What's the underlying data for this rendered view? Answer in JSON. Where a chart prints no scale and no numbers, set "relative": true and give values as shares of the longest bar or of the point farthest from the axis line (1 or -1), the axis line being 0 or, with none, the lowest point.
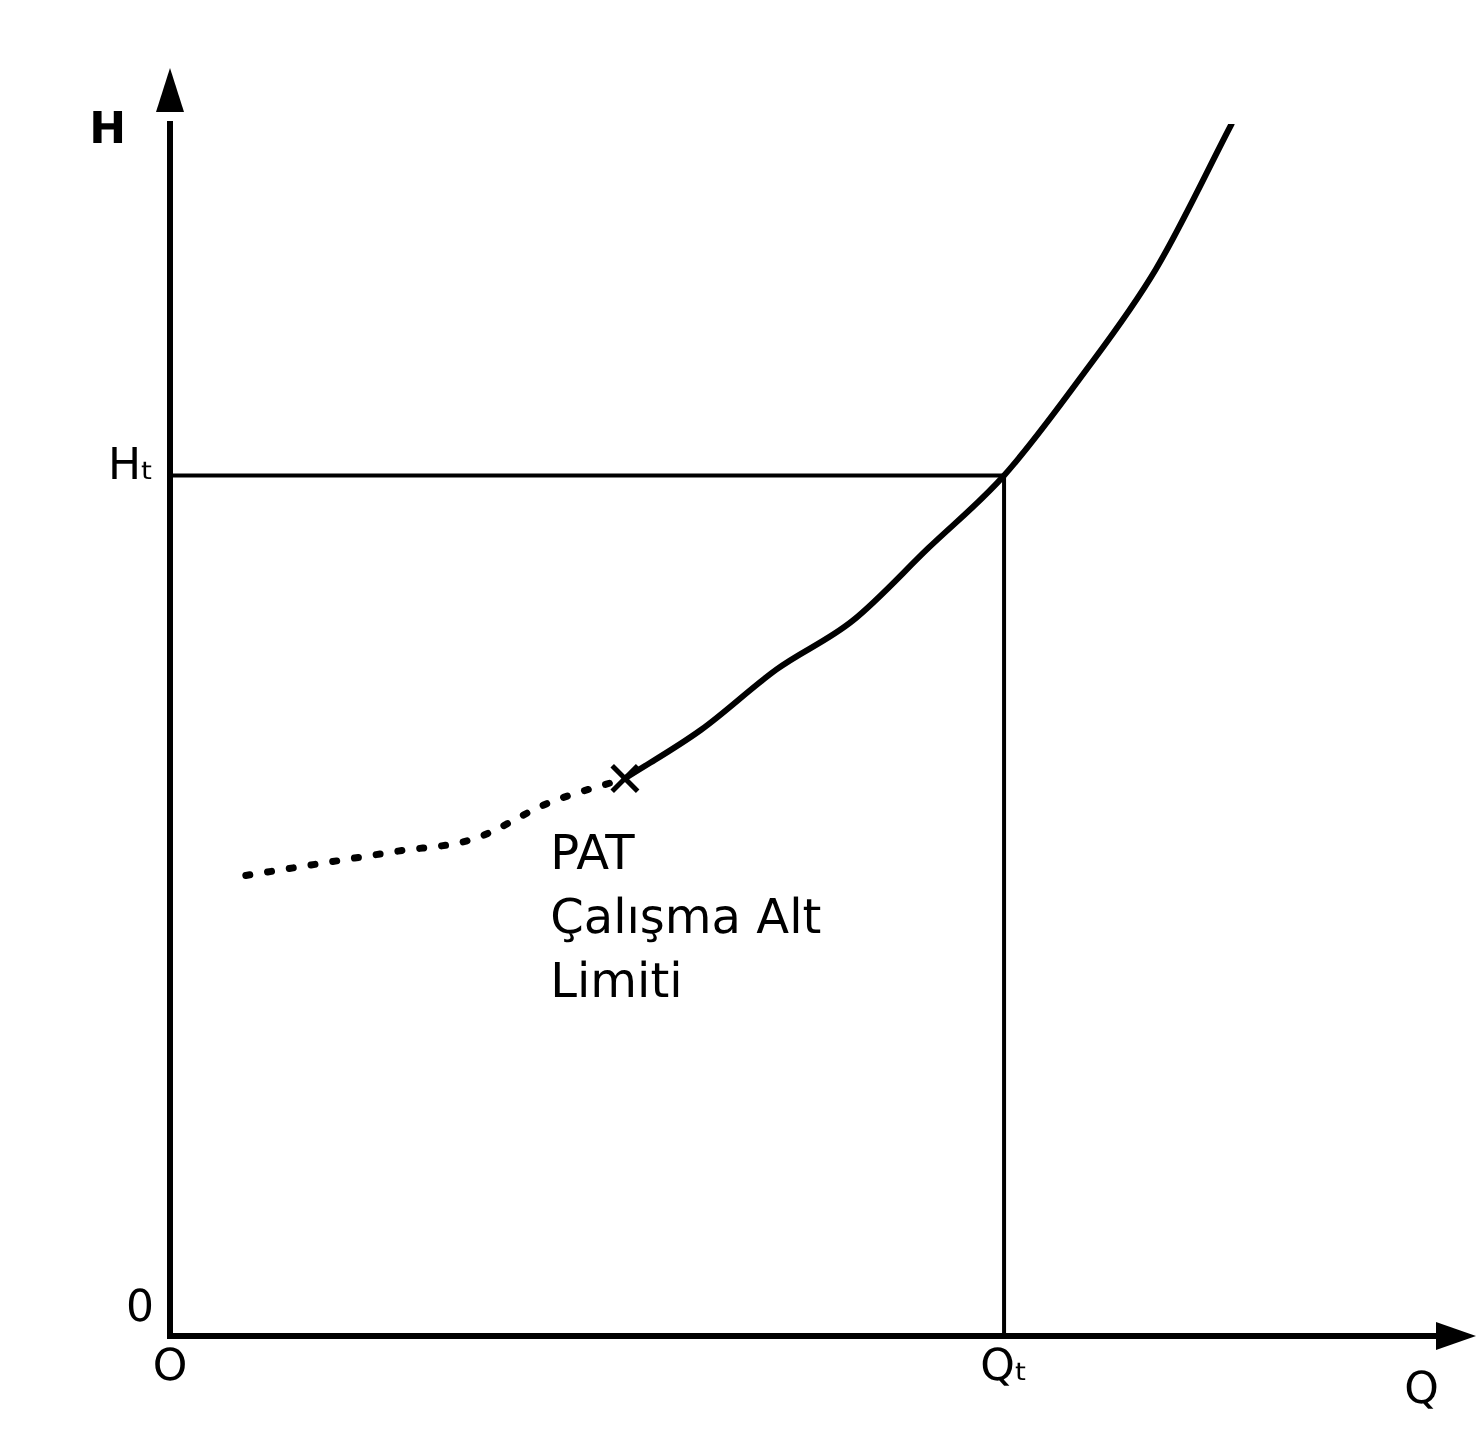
{
  "chart_data": {
    "type": "line",
    "relative": true,
    "xlabel": "Q",
    "ylabel": "H",
    "categories": [
      "O",
      null,
      null,
      null,
      null,
      null,
      null,
      null,
      null,
      null,
      null,
      "Qₜ",
      null,
      null,
      null,
      null,
      null,
      null
    ],
    "series": [
      {
        "color": "#000000",
        "line_style": "dotted",
        "values": [
          null,
          0.38,
          0.39,
          0.4,
          0.41,
          0.44,
          0.46,
          null,
          null,
          null,
          null,
          null,
          null,
          null,
          null,
          null,
          null,
          null
        ]
      },
      {
        "color": "#000000",
        "line_style": "solid",
        "values": [
          null,
          null,
          null,
          null,
          null,
          null,
          0.46,
          0.5,
          0.55,
          0.59,
          0.65,
          0.71,
          0.79,
          0.88,
          1.0,
          null,
          null,
          null
        ]
      },
      {
        "type": "scatter",
        "color": "#000000",
        "marker": "cross",
        "values": [
          null,
          null,
          null,
          null,
          null,
          null,
          0.46,
          null,
          null,
          null,
          null,
          null,
          null,
          null,
          null,
          null,
          null,
          null
        ]
      }
    ],
    "ref_lines": [
      {
        "axis": "y",
        "value": 0.71,
        "label": "Hₜ"
      },
      {
        "axis": "x",
        "value": "Qₜ",
        "label": null
      }
    ],
    "annotations": [
      "PAT\nÇalışma Alt\nLimiti",
      "0"
    ],
    "grid": false,
    "legend": false
  }
}
